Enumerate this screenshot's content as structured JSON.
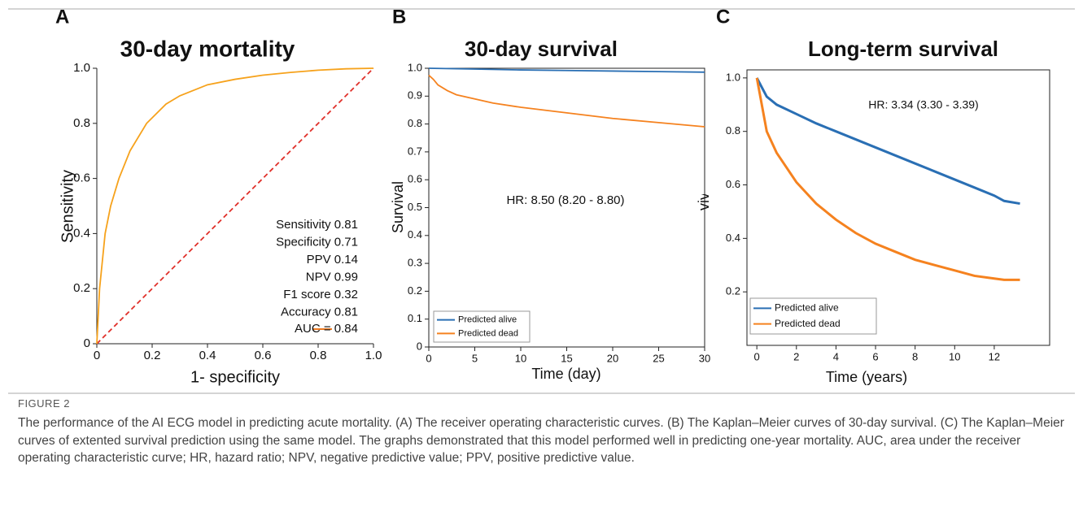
{
  "figure": {
    "label": "FIGURE 2",
    "caption": "The performance of the AI ECG model in predicting acute mortality. (A) The receiver operating characteristic curves. (B) The Kaplan–Meier curves of 30-day survival. (C) The Kaplan–Meier curves of extented survival prediction using the same model. The graphs demonstrated that this model performed well in predicting one-year mortality. AUC, area under the receiver operating characteristic curve; HR, hazard ratio; NPV, negative predictive value; PPV, positive predictive value."
  },
  "chart_data": [
    {
      "type": "line",
      "panel": "A",
      "title": "30-day mortality",
      "xlabel": "1- specificity",
      "ylabel": "Sensitivity",
      "xlim": [
        0,
        1
      ],
      "ylim": [
        0,
        1
      ],
      "xticks": [
        0,
        0.2,
        0.4,
        0.6,
        0.8,
        {
          "value": 1,
          "label": "1.0"
        }
      ],
      "yticks": [
        0,
        0.2,
        0.4,
        0.6,
        0.8,
        {
          "value": 1,
          "label": "1.0"
        }
      ],
      "series": [
        {
          "name": "AUC = 0.84",
          "color": "#f6a21c",
          "legend_color": "#ec7a22",
          "x": [
            0,
            0.01,
            0.03,
            0.05,
            0.08,
            0.12,
            0.18,
            0.25,
            0.3,
            0.4,
            0.5,
            0.6,
            0.7,
            0.8,
            0.9,
            1
          ],
          "values": [
            0,
            0.2,
            0.4,
            0.5,
            0.6,
            0.7,
            0.8,
            0.87,
            0.9,
            0.94,
            0.96,
            0.975,
            0.985,
            0.993,
            0.998,
            1
          ]
        }
      ],
      "reference_line": {
        "x": [
          0,
          1
        ],
        "values": [
          0,
          1
        ],
        "color": "#e0302a"
      },
      "annotations": [
        "Sensitivity 0.81",
        "Specificity 0.71",
        "PPV 0.14",
        "NPV 0.99",
        "F1 score 0.32",
        "Accuracy 0.81"
      ],
      "legend": "lower right"
    },
    {
      "type": "line",
      "panel": "B",
      "title": "30-day survival",
      "xlabel": "Time (day)",
      "ylabel": "Survival",
      "xlim": [
        0,
        30
      ],
      "ylim": [
        0,
        1
      ],
      "xticks": [
        0,
        5,
        10,
        15,
        20,
        25,
        30
      ],
      "yticks": [
        0,
        0.1,
        0.2,
        0.3,
        0.4,
        0.5,
        0.6,
        0.7,
        0.8,
        0.9,
        {
          "value": 1,
          "label": "1.0"
        }
      ],
      "series": [
        {
          "name": "Predicted alive",
          "color": "#2a6fb4",
          "x": [
            0,
            5,
            10,
            15,
            20,
            25,
            30
          ],
          "values": [
            1.0,
            0.997,
            0.994,
            0.992,
            0.99,
            0.988,
            0.986
          ]
        },
        {
          "name": "Predicted dead",
          "color": "#f5821f",
          "x": [
            0,
            0.5,
            1,
            2,
            3,
            5,
            7,
            10,
            15,
            20,
            25,
            30
          ],
          "values": [
            0.975,
            0.96,
            0.94,
            0.92,
            0.905,
            0.89,
            0.875,
            0.86,
            0.84,
            0.82,
            0.805,
            0.79
          ]
        }
      ],
      "annotations": [
        "HR: 8.50 (8.20 - 8.80)"
      ],
      "legend": "lower left"
    },
    {
      "type": "line",
      "panel": "C",
      "title": "Long-term survival",
      "xlabel": "Time (years)",
      "ylabel": "Survival",
      "xlim": [
        -0.5,
        14.8
      ],
      "ylim": [
        0,
        1.03
      ],
      "xticks": [
        0,
        2,
        4,
        6,
        8,
        10,
        12
      ],
      "yticks": [
        0.2,
        0.4,
        0.6,
        0.8,
        {
          "value": 1,
          "label": "1.0"
        }
      ],
      "series": [
        {
          "name": "Predicted alive",
          "color": "#2a6fb4",
          "x": [
            0,
            0.5,
            1,
            2,
            3,
            4,
            5,
            6,
            7,
            8,
            9,
            10,
            11,
            12,
            12.5,
            13.3
          ],
          "values": [
            1.0,
            0.93,
            0.9,
            0.865,
            0.83,
            0.8,
            0.77,
            0.74,
            0.71,
            0.68,
            0.65,
            0.62,
            0.59,
            0.56,
            0.54,
            0.53
          ]
        },
        {
          "name": "Predicted dead",
          "color": "#f5821f",
          "x": [
            0,
            0.5,
            1,
            2,
            3,
            4,
            5,
            6,
            7,
            8,
            9,
            10,
            11,
            12,
            12.5,
            13.3
          ],
          "values": [
            1.0,
            0.8,
            0.72,
            0.61,
            0.53,
            0.47,
            0.42,
            0.38,
            0.35,
            0.32,
            0.3,
            0.28,
            0.26,
            0.25,
            0.245,
            0.245
          ]
        }
      ],
      "annotations": [
        "HR: 3.34 (3.30 - 3.39)"
      ],
      "legend": "lower left"
    }
  ]
}
